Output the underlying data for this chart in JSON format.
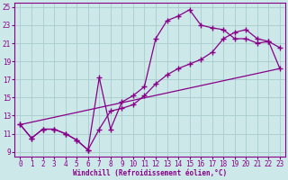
{
  "xlabel": "Windchill (Refroidissement éolien,°C)",
  "bg_color": "#cce8e8",
  "line_color": "#880088",
  "grid_color": "#aacccc",
  "xlim_min": -0.5,
  "xlim_max": 23.5,
  "ylim_min": 8.5,
  "ylim_max": 25.5,
  "yticks": [
    9,
    11,
    13,
    15,
    17,
    19,
    21,
    23,
    25
  ],
  "xticks": [
    0,
    1,
    2,
    3,
    4,
    5,
    6,
    7,
    8,
    9,
    10,
    11,
    12,
    13,
    14,
    15,
    16,
    17,
    18,
    19,
    20,
    21,
    22,
    23
  ],
  "line1_x": [
    0,
    1,
    2,
    3,
    4,
    5,
    6,
    7,
    8,
    9,
    10,
    11,
    12,
    13,
    14,
    15,
    16,
    17,
    18,
    19,
    20,
    21,
    22,
    23
  ],
  "line1_y": [
    12.0,
    10.5,
    11.5,
    11.5,
    11.0,
    10.3,
    9.2,
    17.2,
    11.5,
    14.5,
    15.2,
    16.2,
    21.5,
    23.5,
    24.0,
    24.7,
    23.0,
    22.7,
    22.5,
    21.5,
    21.5,
    21.0,
    21.2,
    20.5
  ],
  "line2_x": [
    0,
    1,
    2,
    3,
    4,
    5,
    6,
    7,
    8,
    9,
    10,
    11,
    12,
    13,
    14,
    15,
    16,
    17,
    18,
    19,
    20,
    21,
    22,
    23
  ],
  "line2_y": [
    12.0,
    10.5,
    11.5,
    11.5,
    11.0,
    10.3,
    9.2,
    11.5,
    13.5,
    13.8,
    14.2,
    15.2,
    16.5,
    17.5,
    18.2,
    18.7,
    19.2,
    20.0,
    21.5,
    22.2,
    22.5,
    21.5,
    21.2,
    18.2
  ],
  "line3_x": [
    0,
    23
  ],
  "line3_y": [
    12.0,
    18.2
  ],
  "marker": "+",
  "markersize": 4,
  "linewidth": 0.9,
  "tick_fontsize": 5.5,
  "xlabel_fontsize": 5.5
}
